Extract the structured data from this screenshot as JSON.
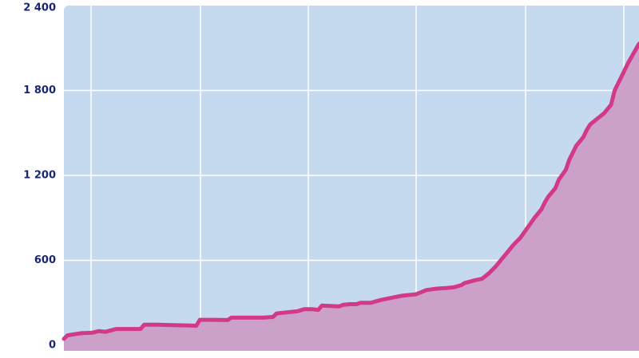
{
  "chart_data": {
    "type": "area",
    "title": "",
    "xlabel": "",
    "ylabel": "",
    "ylim": [
      0,
      2400
    ],
    "yticks": [
      {
        "value": 0,
        "label": "0"
      },
      {
        "value": 600,
        "label": "600"
      },
      {
        "value": 1200,
        "label": "1 200"
      },
      {
        "value": 1800,
        "label": "1 800"
      },
      {
        "value": 2400,
        "label": "2 400"
      }
    ],
    "x_tick_labels_visible": false,
    "grid": true,
    "legend": "none",
    "colors": {
      "plot_background": "#c5d9ef",
      "line": "#d23a88",
      "fill": "#cba1ca",
      "grid": "#ffffff",
      "tick_text": "#1c2670"
    },
    "series": [
      {
        "values": [
          [
            0,
            45
          ],
          [
            1,
            70
          ],
          [
            3,
            78
          ],
          [
            5,
            85
          ],
          [
            8,
            88
          ],
          [
            10,
            100
          ],
          [
            12,
            95
          ],
          [
            15,
            115
          ],
          [
            18,
            115
          ],
          [
            22,
            115
          ],
          [
            23,
            145
          ],
          [
            27,
            145
          ],
          [
            30,
            143
          ],
          [
            35,
            140
          ],
          [
            38,
            138
          ],
          [
            39,
            180
          ],
          [
            43,
            180
          ],
          [
            47,
            178
          ],
          [
            48,
            195
          ],
          [
            52,
            195
          ],
          [
            57,
            195
          ],
          [
            60,
            200
          ],
          [
            61,
            225
          ],
          [
            63,
            230
          ],
          [
            67,
            240
          ],
          [
            69,
            255
          ],
          [
            71,
            255
          ],
          [
            73,
            250
          ],
          [
            74,
            280
          ],
          [
            79,
            275
          ],
          [
            80,
            285
          ],
          [
            82,
            290
          ],
          [
            84,
            290
          ],
          [
            85,
            300
          ],
          [
            88,
            300
          ],
          [
            91,
            320
          ],
          [
            95,
            340
          ],
          [
            97,
            350
          ],
          [
            101,
            360
          ],
          [
            103,
            380
          ],
          [
            104,
            390
          ],
          [
            107,
            400
          ],
          [
            110,
            405
          ],
          [
            112,
            410
          ],
          [
            114,
            425
          ],
          [
            115,
            440
          ],
          [
            118,
            460
          ],
          [
            120,
            470
          ],
          [
            122,
            510
          ],
          [
            124,
            560
          ],
          [
            126,
            620
          ],
          [
            127,
            650
          ],
          [
            129,
            710
          ],
          [
            131,
            760
          ],
          [
            133,
            830
          ],
          [
            135,
            900
          ],
          [
            137,
            960
          ],
          [
            138,
            1010
          ],
          [
            139,
            1050
          ],
          [
            141,
            1110
          ],
          [
            142,
            1170
          ],
          [
            144,
            1240
          ],
          [
            145,
            1310
          ],
          [
            147,
            1410
          ],
          [
            149,
            1470
          ],
          [
            150,
            1520
          ],
          [
            151,
            1560
          ],
          [
            153,
            1600
          ],
          [
            155,
            1640
          ],
          [
            157,
            1700
          ],
          [
            158,
            1800
          ],
          [
            160,
            1900
          ],
          [
            162,
            2000
          ],
          [
            165,
            2130
          ]
        ]
      }
    ]
  }
}
